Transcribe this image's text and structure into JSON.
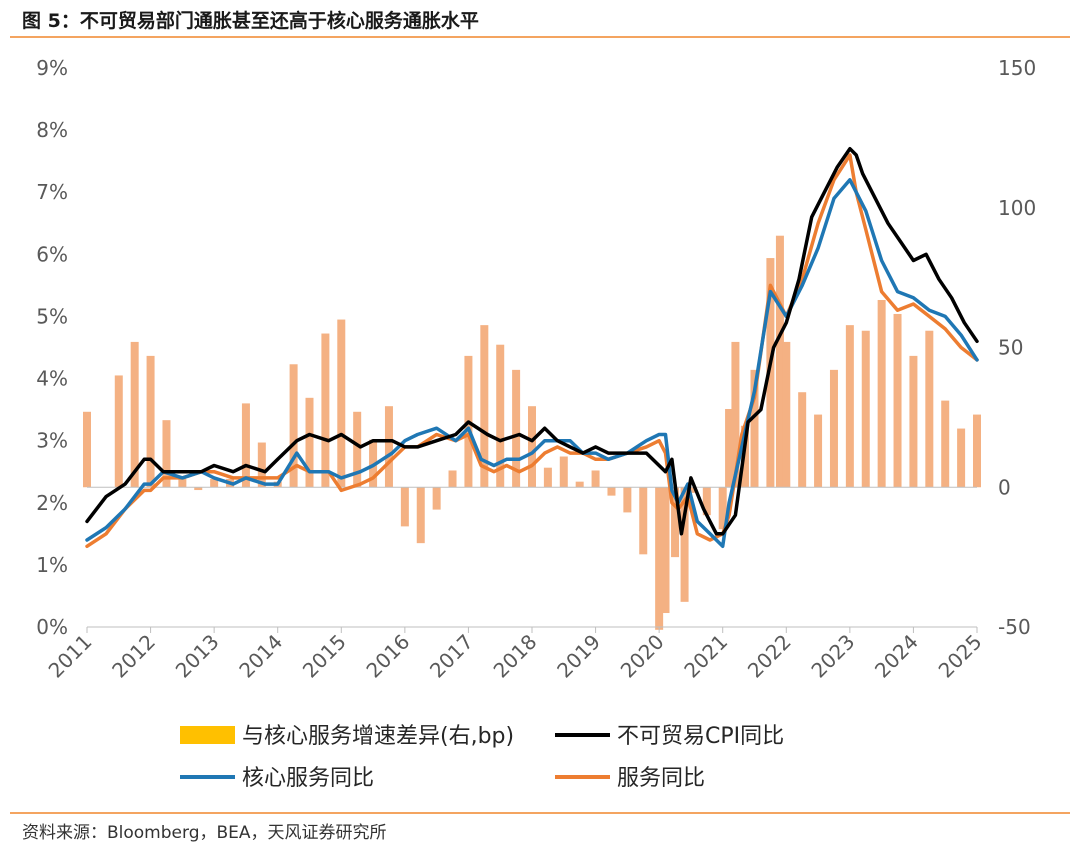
{
  "figure": {
    "title": "图 5：不可贸易部门通胀甚至还高于核心服务通胀水平",
    "source": "资料来源：Bloomberg，BEA，天风证券研究所"
  },
  "chart_data": {
    "type": "bar+line",
    "title": "图 5：不可贸易部门通胀甚至还高于核心服务通胀水平",
    "x_tick_labels": [
      "2011",
      "2012",
      "2013",
      "2014",
      "2015",
      "2016",
      "2017",
      "2018",
      "2019",
      "2020",
      "2021",
      "2022",
      "2023",
      "2024",
      "2025"
    ],
    "x_range": [
      2011.0,
      2025.0
    ],
    "ylim_left": [
      0,
      9
    ],
    "ylim_right": [
      -50,
      150
    ],
    "left_tick_labels": [
      "0%",
      "1%",
      "2%",
      "3%",
      "4%",
      "5%",
      "6%",
      "7%",
      "8%",
      "9%"
    ],
    "right_tick_labels": [
      "-50",
      "0",
      "50",
      "100",
      "150"
    ],
    "colors": {
      "bars": "#f4b183",
      "goods": "#000000",
      "core": "#1f77b4",
      "services": "#ed7d31",
      "axis": "#bfbfbf"
    },
    "series": [
      {
        "name": "与核心服务增速差异(右,bp)",
        "axis": "right",
        "type": "bar",
        "x": [
          2011.0,
          2011.5,
          2011.75,
          2012.0,
          2012.25,
          2012.5,
          2012.75,
          2013.0,
          2013.25,
          2013.5,
          2013.75,
          2014.0,
          2014.25,
          2014.5,
          2014.75,
          2015.0,
          2015.25,
          2015.5,
          2015.75,
          2016.0,
          2016.25,
          2016.5,
          2016.75,
          2017.0,
          2017.25,
          2017.5,
          2017.75,
          2018.0,
          2018.25,
          2018.5,
          2018.75,
          2019.0,
          2019.25,
          2019.5,
          2019.75,
          2020.0,
          2020.1,
          2020.25,
          2020.4,
          2020.5,
          2020.75,
          2021.0,
          2021.1,
          2021.2,
          2021.35,
          2021.5,
          2021.75,
          2021.9,
          2022.0,
          2022.25,
          2022.5,
          2022.75,
          2023.0,
          2023.25,
          2023.5,
          2023.75,
          2024.0,
          2024.25,
          2024.5,
          2024.75,
          2025.0
        ],
        "values": [
          27,
          40,
          52,
          47,
          24,
          3,
          -1,
          3,
          3,
          30,
          16,
          2,
          44,
          32,
          55,
          60,
          27,
          17,
          29,
          -14,
          -20,
          -8,
          6,
          47,
          58,
          51,
          42,
          29,
          7,
          11,
          2,
          6,
          -3,
          -9,
          -24,
          -51,
          -45,
          -25,
          -41,
          -2,
          -10,
          -15,
          28,
          52,
          22,
          42,
          82,
          90,
          52,
          34,
          26,
          42,
          58,
          56,
          67,
          62,
          47,
          56,
          31,
          21,
          26
        ]
      },
      {
        "name": "不可贸易CPI同比",
        "axis": "left",
        "type": "line",
        "x": [
          2011.0,
          2011.3,
          2011.6,
          2011.9,
          2012.0,
          2012.2,
          2012.5,
          2012.8,
          2013.0,
          2013.3,
          2013.5,
          2013.8,
          2014.0,
          2014.3,
          2014.5,
          2014.8,
          2015.0,
          2015.3,
          2015.5,
          2015.8,
          2016.0,
          2016.2,
          2016.5,
          2016.8,
          2017.0,
          2017.3,
          2017.5,
          2017.8,
          2018.0,
          2018.2,
          2018.4,
          2018.6,
          2018.8,
          2019.0,
          2019.2,
          2019.5,
          2019.8,
          2020.0,
          2020.1,
          2020.2,
          2020.35,
          2020.5,
          2020.7,
          2020.9,
          2021.0,
          2021.2,
          2021.4,
          2021.6,
          2021.8,
          2022.0,
          2022.2,
          2022.4,
          2022.6,
          2022.8,
          2023.0,
          2023.1,
          2023.2,
          2023.4,
          2023.6,
          2023.8,
          2024.0,
          2024.2,
          2024.4,
          2024.6,
          2024.8,
          2025.0
        ],
        "values": [
          1.7,
          2.1,
          2.3,
          2.7,
          2.7,
          2.5,
          2.5,
          2.5,
          2.6,
          2.5,
          2.6,
          2.5,
          2.7,
          3.0,
          3.1,
          3.0,
          3.1,
          2.9,
          3.0,
          3.0,
          2.9,
          2.9,
          3.0,
          3.1,
          3.3,
          3.1,
          3.0,
          3.1,
          3.0,
          3.2,
          3.0,
          2.9,
          2.8,
          2.9,
          2.8,
          2.8,
          2.8,
          2.6,
          2.5,
          2.7,
          1.5,
          2.4,
          1.9,
          1.5,
          1.5,
          1.8,
          3.3,
          3.5,
          4.5,
          4.9,
          5.6,
          6.6,
          7.0,
          7.4,
          7.7,
          7.6,
          7.3,
          6.9,
          6.5,
          6.2,
          5.9,
          6.0,
          5.6,
          5.3,
          4.9,
          4.6
        ]
      },
      {
        "name": "核心服务同比",
        "axis": "left",
        "type": "line",
        "x": [
          2011.0,
          2011.3,
          2011.6,
          2011.9,
          2012.0,
          2012.2,
          2012.5,
          2012.8,
          2013.0,
          2013.3,
          2013.5,
          2013.8,
          2014.0,
          2014.3,
          2014.5,
          2014.8,
          2015.0,
          2015.3,
          2015.5,
          2015.8,
          2016.0,
          2016.2,
          2016.5,
          2016.8,
          2017.0,
          2017.2,
          2017.4,
          2017.6,
          2017.8,
          2018.0,
          2018.2,
          2018.4,
          2018.6,
          2018.8,
          2019.0,
          2019.2,
          2019.5,
          2019.8,
          2020.0,
          2020.1,
          2020.2,
          2020.3,
          2020.45,
          2020.6,
          2020.8,
          2021.0,
          2021.1,
          2021.3,
          2021.5,
          2021.75,
          2022.0,
          2022.25,
          2022.5,
          2022.75,
          2023.0,
          2023.1,
          2023.25,
          2023.5,
          2023.75,
          2024.0,
          2024.25,
          2024.5,
          2024.75,
          2025.0
        ],
        "values": [
          1.4,
          1.6,
          1.9,
          2.3,
          2.3,
          2.5,
          2.4,
          2.5,
          2.4,
          2.3,
          2.4,
          2.3,
          2.3,
          2.8,
          2.5,
          2.5,
          2.4,
          2.5,
          2.6,
          2.8,
          3.0,
          3.1,
          3.2,
          3.0,
          3.2,
          2.7,
          2.6,
          2.7,
          2.7,
          2.8,
          3.0,
          3.0,
          3.0,
          2.8,
          2.8,
          2.7,
          2.8,
          3.0,
          3.1,
          3.1,
          2.2,
          2.0,
          2.3,
          1.7,
          1.5,
          1.3,
          2.0,
          2.9,
          3.8,
          5.4,
          5.0,
          5.5,
          6.1,
          6.9,
          7.2,
          7.0,
          6.7,
          5.9,
          5.4,
          5.3,
          5.1,
          5.0,
          4.7,
          4.3
        ]
      },
      {
        "name": "服务同比",
        "axis": "left",
        "type": "line",
        "x": [
          2011.0,
          2011.3,
          2011.6,
          2011.9,
          2012.0,
          2012.2,
          2012.5,
          2012.8,
          2013.0,
          2013.3,
          2013.5,
          2013.8,
          2014.0,
          2014.3,
          2014.5,
          2014.8,
          2015.0,
          2015.3,
          2015.5,
          2015.8,
          2016.0,
          2016.2,
          2016.5,
          2016.8,
          2017.0,
          2017.2,
          2017.4,
          2017.6,
          2017.8,
          2018.0,
          2018.2,
          2018.4,
          2018.6,
          2018.8,
          2019.0,
          2019.2,
          2019.5,
          2019.8,
          2020.0,
          2020.1,
          2020.2,
          2020.3,
          2020.45,
          2020.6,
          2020.8,
          2021.0,
          2021.1,
          2021.3,
          2021.5,
          2021.75,
          2022.0,
          2022.25,
          2022.5,
          2022.75,
          2023.0,
          2023.1,
          2023.25,
          2023.5,
          2023.75,
          2024.0,
          2024.25,
          2024.5,
          2024.75,
          2025.0
        ],
        "values": [
          1.3,
          1.5,
          1.9,
          2.2,
          2.2,
          2.4,
          2.4,
          2.5,
          2.5,
          2.4,
          2.4,
          2.4,
          2.4,
          2.6,
          2.5,
          2.5,
          2.2,
          2.3,
          2.4,
          2.7,
          2.9,
          2.9,
          3.1,
          3.0,
          3.1,
          2.6,
          2.5,
          2.6,
          2.5,
          2.6,
          2.8,
          2.9,
          2.8,
          2.8,
          2.7,
          2.7,
          2.8,
          2.9,
          3.0,
          2.8,
          2.0,
          1.9,
          2.1,
          1.5,
          1.4,
          1.5,
          1.8,
          3.1,
          3.7,
          5.5,
          5.0,
          5.6,
          6.5,
          7.2,
          7.6,
          7.0,
          6.4,
          5.4,
          5.1,
          5.2,
          5.0,
          4.8,
          4.5,
          4.3
        ]
      }
    ]
  }
}
